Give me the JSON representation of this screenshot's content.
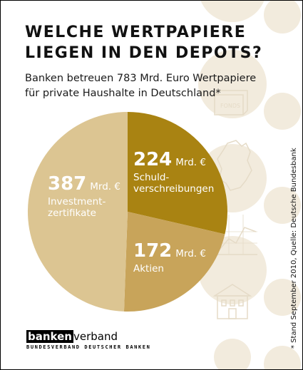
{
  "title_lines": [
    "WELCHE WERTPAPIERE",
    "LIEGEN IN DEN DEPOTS?"
  ],
  "subtitle_lines": [
    "Banken betreuen 783 Mrd. Euro Wertpapiere",
    "für private Haushalte in Deutschland*"
  ],
  "source_note": "* Stand September 2010, Quelle: Deutsche Bundesbank",
  "logo": {
    "boxed": "banken",
    "rest": "verband",
    "subline": "BUNDESVERBAND DEUTSCHER BANKEN"
  },
  "colors": {
    "slice_schuld": "#a98312",
    "slice_aktien": "#c8a45a",
    "slice_invest": "#dcc592",
    "bg_circle": "#f2ebdd",
    "bg_icon": "#e5dbc7"
  },
  "icons": [
    "fonds-folder-icon",
    "germany-map-icon",
    "line-chart-icon",
    "bank-building-icon"
  ],
  "icon_fonds_text": "FONDS",
  "chart_data": {
    "type": "pie",
    "unit": "Mrd. €",
    "slices": [
      {
        "label": "Schuldverschreibungen",
        "display_label": "Schuld-\nverschreibungen",
        "value": 224,
        "value_text": "224",
        "unit_text": "Mrd. €",
        "color": "#a98312"
      },
      {
        "label": "Aktien",
        "display_label": "Aktien",
        "value": 172,
        "value_text": "172",
        "unit_text": "Mrd. €",
        "color": "#c8a45a"
      },
      {
        "label": "Investmentzertifikate",
        "display_label": "Investment-\nzertifikate",
        "value": 387,
        "value_text": "387",
        "unit_text": "Mrd. €",
        "color": "#dcc592"
      }
    ]
  }
}
